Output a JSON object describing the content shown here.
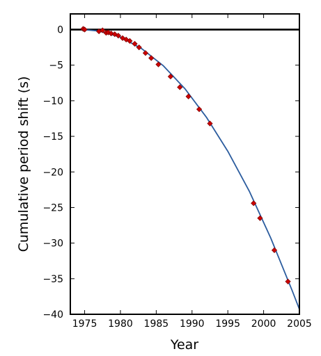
{
  "chart_data": {
    "type": "scatter",
    "title": "",
    "xlabel": "Year",
    "ylabel": "Cumulative period shift (s)",
    "xlim": [
      1973,
      2005
    ],
    "ylim": [
      -40,
      2.2
    ],
    "x_ticks": [
      1975,
      1980,
      1985,
      1990,
      1995,
      2000,
      2005
    ],
    "y_ticks": [
      0,
      -5,
      -10,
      -15,
      -20,
      -25,
      -30,
      -35,
      -40
    ],
    "grid": false,
    "legend": "none",
    "zero_line": true,
    "colors": {
      "points": "#cc0000",
      "curve": "#2b5c9e",
      "axes": "#000000"
    },
    "series": [
      {
        "kind": "observations",
        "x": [
          1974.8,
          1975.0,
          1977.0,
          1977.5,
          1978.0,
          1978.3,
          1978.7,
          1979.2,
          1979.7,
          1980.3,
          1980.8,
          1981.3,
          1982.0,
          1982.6,
          1983.5,
          1984.3,
          1985.3,
          1987.0,
          1988.3,
          1989.5,
          1991.0,
          1992.5,
          1998.6,
          1999.5,
          2001.5,
          2003.4
        ],
        "y": [
          0.1,
          0.0,
          -0.25,
          -0.1,
          -0.45,
          -0.4,
          -0.55,
          -0.65,
          -0.85,
          -1.2,
          -1.4,
          -1.6,
          -2.0,
          -2.5,
          -3.3,
          -4.0,
          -4.9,
          -6.6,
          -8.1,
          -9.4,
          -11.2,
          -13.2,
          -24.4,
          -26.5,
          -31.0,
          -35.4
        ]
      },
      {
        "kind": "model-curve",
        "x": [
          1974.7,
          1977,
          1980,
          1983,
          1986,
          1989,
          1992,
          1995,
          1998,
          2001,
          2004,
          2005
        ],
        "y": [
          0.0,
          -0.2,
          -1.05,
          -2.7,
          -5.1,
          -8.3,
          -12.3,
          -17.1,
          -22.7,
          -29.3,
          -36.7,
          -39.3
        ]
      }
    ]
  }
}
